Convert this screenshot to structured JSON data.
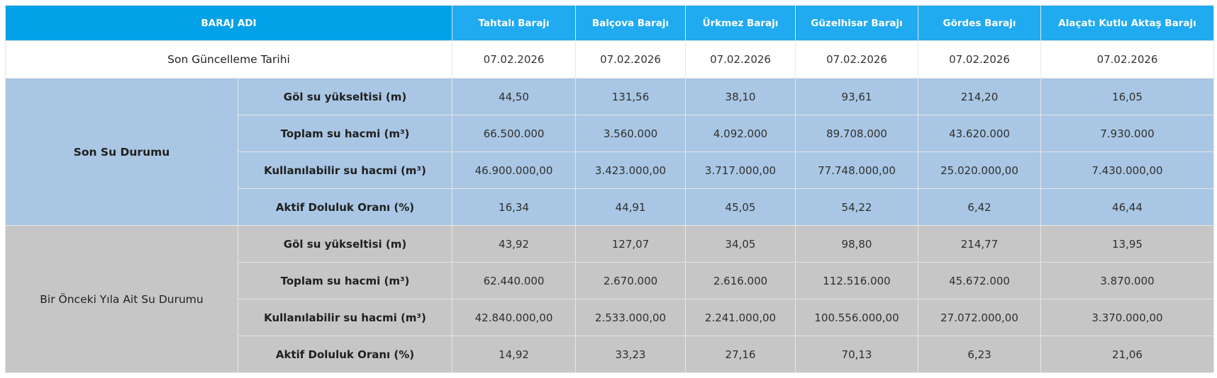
{
  "table": {
    "corner_label": "BARAJ ADI",
    "dams": [
      "Tahtalı Barajı",
      "Balçova Barajı",
      "Ürkmez Barajı",
      "Güzelhisar Barajı",
      "Gördes Barajı",
      "Alaçatı Kutlu Aktaş Barajı"
    ],
    "date_row": {
      "label": "Son Güncelleme Tarihi",
      "values": [
        "07.02.2026",
        "07.02.2026",
        "07.02.2026",
        "07.02.2026",
        "07.02.2026",
        "07.02.2026"
      ]
    },
    "groups": [
      {
        "label": "Son Su Durumu",
        "rows": [
          {
            "metric": "Göl su yükseltisi (m)",
            "values": [
              "44,50",
              "131,56",
              "38,10",
              "93,61",
              "214,20",
              "16,05"
            ]
          },
          {
            "metric": "Toplam su hacmi (m³)",
            "values": [
              "66.500.000",
              "3.560.000",
              "4.092.000",
              "89.708.000",
              "43.620.000",
              "7.930.000"
            ]
          },
          {
            "metric": "Kullanılabilir su hacmi (m³)",
            "values": [
              "46.900.000,00",
              "3.423.000,00",
              "3.717.000,00",
              "77.748.000,00",
              "25.020.000,00",
              "7.430.000,00"
            ]
          },
          {
            "metric": "Aktif Doluluk Oranı (%)",
            "values": [
              "16,34",
              "44,91",
              "45,05",
              "54,22",
              "6,42",
              "46,44"
            ]
          }
        ]
      },
      {
        "label": "Bir Önceki Yıla Ait Su Durumu",
        "rows": [
          {
            "metric": "Göl su yükseltisi (m)",
            "values": [
              "43,92",
              "127,07",
              "34,05",
              "98,80",
              "214,77",
              "13,95"
            ]
          },
          {
            "metric": "Toplam su hacmi (m³)",
            "values": [
              "62.440.000",
              "2.670.000",
              "2.616.000",
              "112.516.000",
              "45.672.000",
              "3.870.000"
            ]
          },
          {
            "metric": "Kullanılabilir su hacmi (m³)",
            "values": [
              "42.840.000,00",
              "2.533.000,00",
              "2.241.000,00",
              "100.556.000,00",
              "27.072.000,00",
              "3.370.000,00"
            ]
          },
          {
            "metric": "Aktif Doluluk Oranı (%)",
            "values": [
              "14,92",
              "33,23",
              "27,16",
              "70,13",
              "6,23",
              "21,06"
            ]
          }
        ]
      }
    ]
  },
  "colors": {
    "header_corner": "#02a1e8",
    "header": "#20aaf0",
    "current_group": "#a9c7e4",
    "previous_group": "#c6c6c6"
  }
}
